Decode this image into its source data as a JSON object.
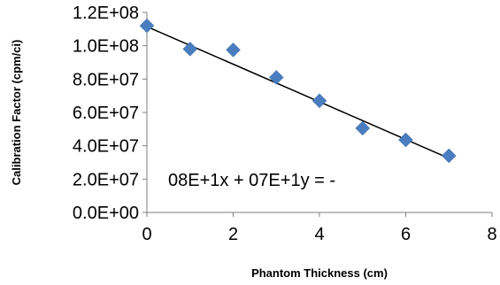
{
  "chart_data": {
    "type": "scatter",
    "xlabel": "Phantom Thickness (cm)",
    "ylabel": "Calibration Factor (cpm/ci)",
    "xlim": [
      0,
      8
    ],
    "ylim": [
      0,
      120000000
    ],
    "x_ticks": [
      0,
      2,
      4,
      6,
      8
    ],
    "x_tick_labels": [
      "0",
      "2",
      "4",
      "6",
      "8"
    ],
    "y_ticks": [
      0,
      20000000,
      40000000,
      60000000,
      80000000,
      100000000,
      120000000
    ],
    "y_tick_labels": [
      "0.0E+00",
      "2.0E+07",
      "4.0E+07",
      "6.0E+07",
      "8.0E+07",
      "1.0E+08",
      "1.2E+08"
    ],
    "series": [
      {
        "x": [
          0,
          1,
          2,
          3,
          4,
          5,
          6,
          7
        ],
        "y": [
          112000000,
          98000000,
          97500000,
          81000000,
          67000000,
          50500000,
          43500000,
          34000000
        ],
        "color": "#4a7dbf",
        "marker": "diamond"
      }
    ],
    "trendline": {
      "type": "linear",
      "x": [
        0,
        7
      ],
      "y": [
        111500000,
        32500000
      ],
      "color": "#000000"
    },
    "annotations": [
      {
        "text": "08E+1x + 07E+1y = -"
      }
    ],
    "grid": false,
    "legend": "none"
  }
}
